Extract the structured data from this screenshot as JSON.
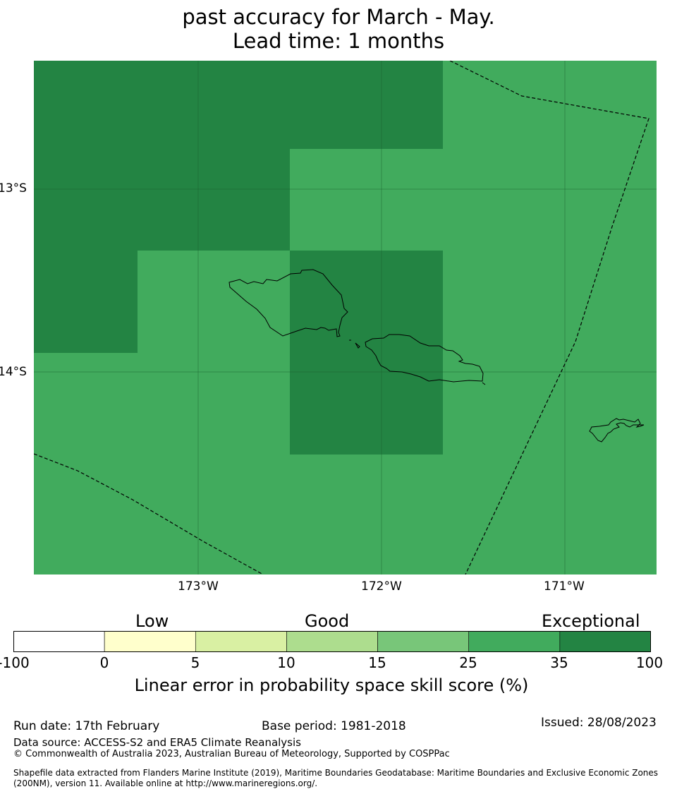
{
  "title": {
    "line1": "past accuracy for March - May.",
    "line2": "Lead time: 1 months"
  },
  "map": {
    "lat_labels": [
      "13°S",
      "14°S"
    ],
    "lon_labels": [
      "173°W",
      "172°W",
      "171°W"
    ],
    "extent": {
      "lon": [
        -173.9,
        -170.5
      ],
      "lat": [
        -12.3,
        -15.1
      ]
    },
    "gridlines": true,
    "grid_cells": [
      {
        "lon": [
          -173.9,
          -171.65
        ],
        "lat": [
          -12.3,
          -12.78
        ],
        "category": "35-100"
      },
      {
        "lon": [
          -173.9,
          -172.5
        ],
        "lat": [
          -12.78,
          -13.33
        ],
        "category": "35-100"
      },
      {
        "lon": [
          -173.9,
          -173.33
        ],
        "lat": [
          -13.33,
          -13.89
        ],
        "category": "35-100"
      },
      {
        "lon": [
          -172.5,
          -171.65
        ],
        "lat": [
          -13.33,
          -14.45
        ],
        "category": "35-100"
      },
      {
        "lon": [
          -173.9,
          -170.5
        ],
        "lat": [
          -12.3,
          -15.1
        ],
        "category": "25-35"
      }
    ]
  },
  "colorbar": {
    "categories": [
      "Low",
      "Good",
      "Exceptional"
    ],
    "ticks": [
      "-100",
      "0",
      "5",
      "10",
      "15",
      "25",
      "35",
      "100"
    ],
    "colors": [
      "#ffffff",
      "#ffffcc",
      "#d9f0a3",
      "#addd8e",
      "#78c679",
      "#41ab5d",
      "#238443"
    ],
    "label": "Linear error in probability space skill score (%)"
  },
  "colors": {
    "high": "#238443",
    "medium": "#41ab5d",
    "land_stroke": "#000000",
    "eez_stroke": "#000000"
  },
  "footer": {
    "run_date": "Run date: 17th February",
    "base_period": "Base period: 1981-2018",
    "issued": "Issued: 28/08/2023",
    "data_source": "Data source: ACCESS-S2 and ERA5 Climate Reanalysis",
    "copyright": "© Commonwealth of Australia 2023, Australian Bureau of Meteorology, Supported by COSPPac",
    "shapefile": "Shapefile data extracted from Flanders Marine Institute (2019), Maritime Boundaries Geodatabase: Maritime Boundaries and Exclusive Economic Zones (200NM), version 11. Available online at http://www.marineregions.org/."
  }
}
